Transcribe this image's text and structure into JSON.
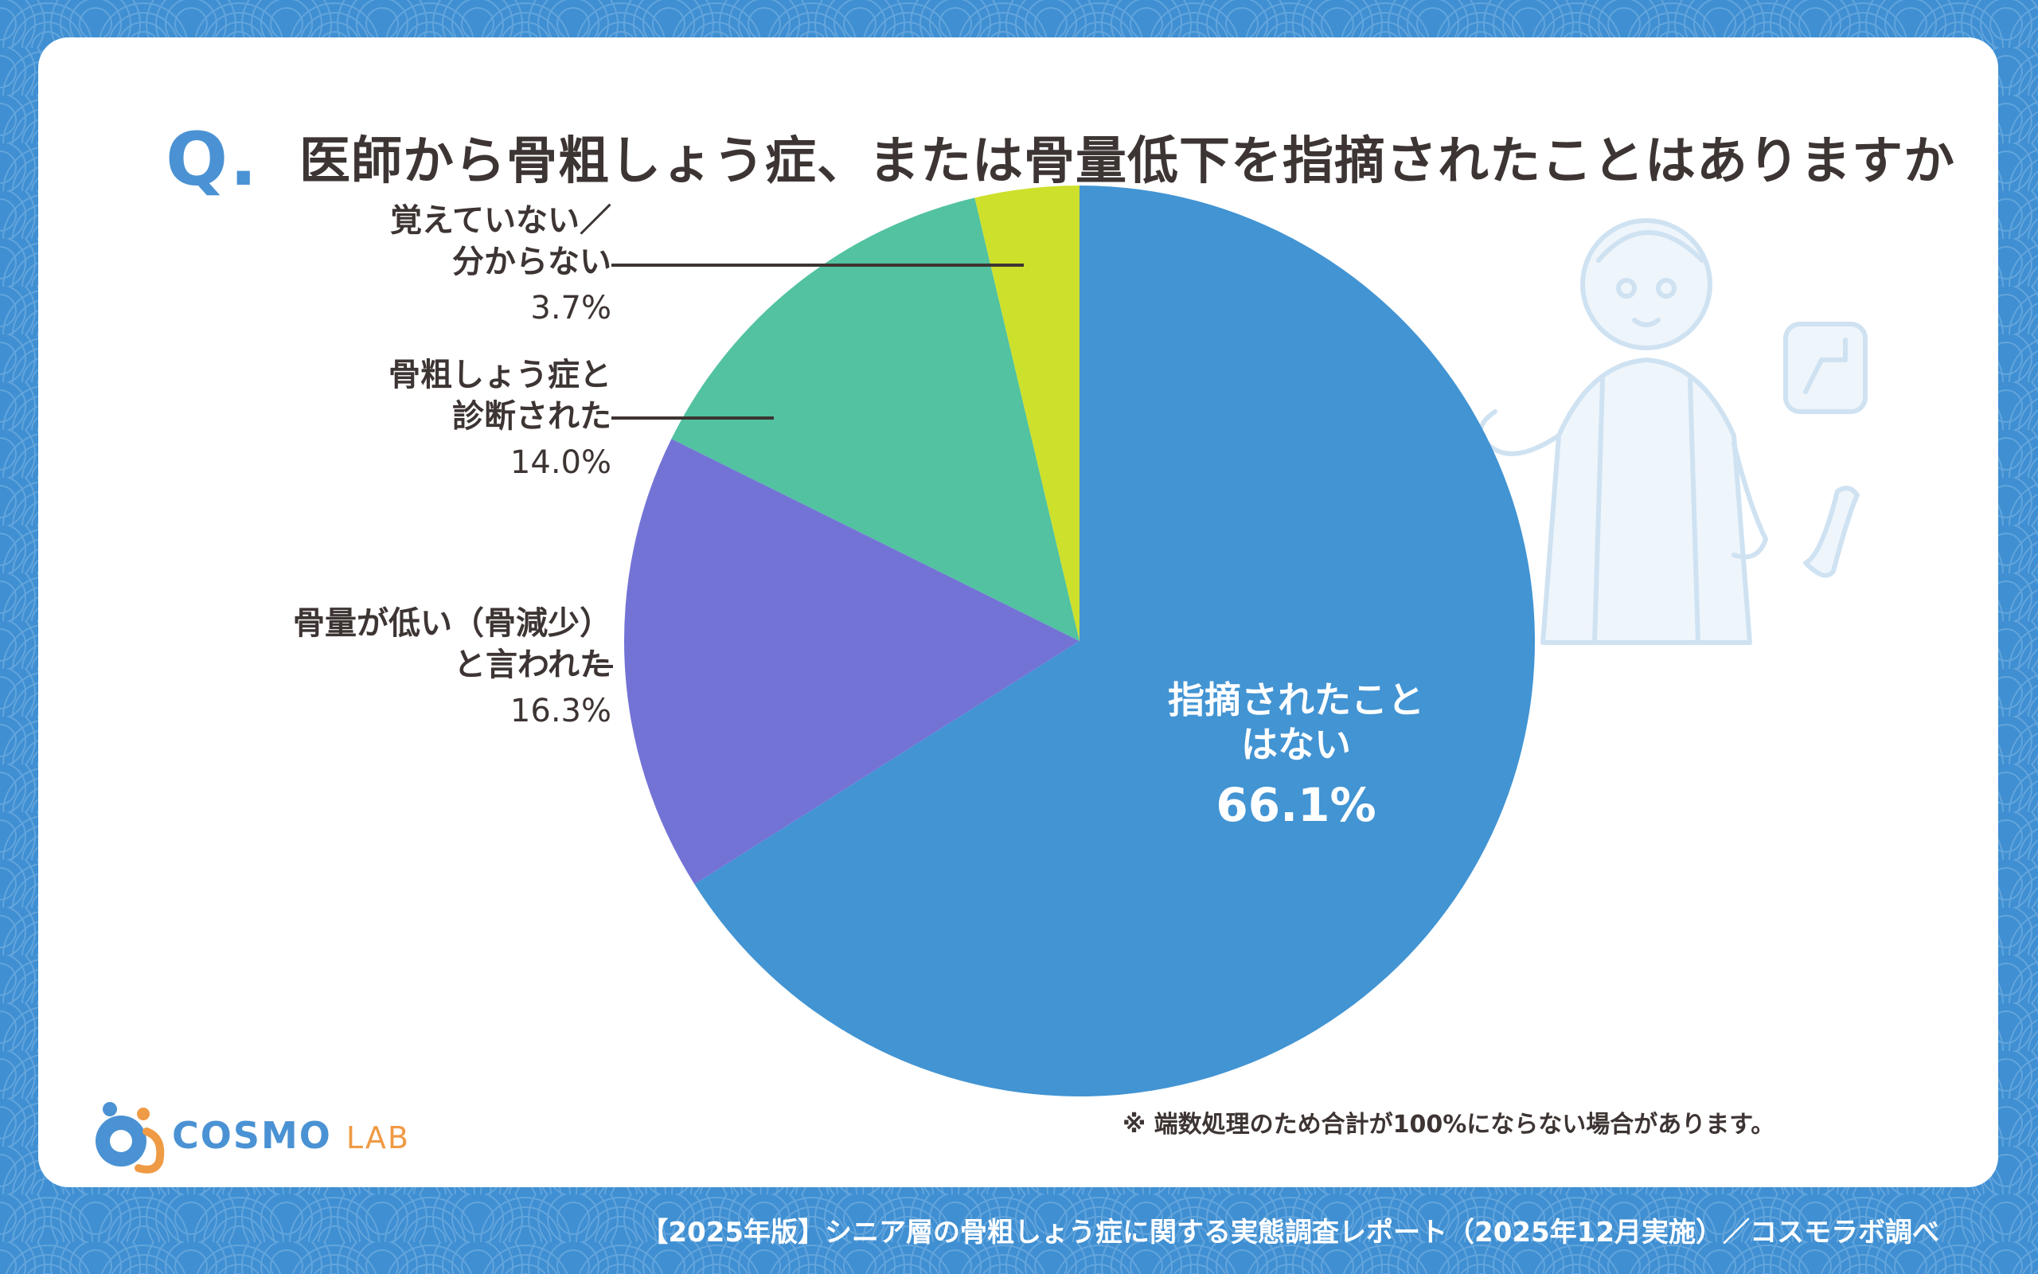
{
  "question": {
    "mark": "Q.",
    "text": "医師から骨粗しょう症、または骨量低下を指摘されたことはありますか"
  },
  "chart_data": {
    "type": "pie",
    "start_angle_deg": 0,
    "direction": "clockwise",
    "slices": [
      {
        "label": "指摘されたことはない",
        "label_lines": [
          "指摘されたこと",
          "はない"
        ],
        "value": 66.1,
        "pct_text": "66.1%",
        "color": "#4294d3"
      },
      {
        "label": "骨量が低い（骨減少）と言われた",
        "label_lines": [
          "骨量が低い（骨減少）",
          "と言われた"
        ],
        "value": 16.3,
        "pct_text": "16.3%",
        "color": "#7373d6"
      },
      {
        "label": "骨粗しょう症と診断された",
        "label_lines": [
          "骨粗しょう症と",
          "診断された"
        ],
        "value": 14.0,
        "pct_text": "14.0%",
        "color": "#52c2a1"
      },
      {
        "label": "覚えていない／分からない",
        "label_lines": [
          "覚えていない／",
          "分からない"
        ],
        "value": 3.7,
        "pct_text": "3.7%",
        "color": "#cde02c"
      }
    ]
  },
  "note": "※ 端数処理のため合計が100%にならない場合があります。",
  "logo": {
    "brand": "COSMO",
    "sub": "LAB"
  },
  "footer": "【2025年版】シニア層の骨粗しょう症に関する実態調査レポート（2025年12月実施）／コスモラボ調べ",
  "colors": {
    "background": "#3f8fd2",
    "card": "#ffffff",
    "text": "#3d3533",
    "accent": "#4a92d3"
  },
  "icons": [
    "senior-illustration-icon",
    "cosmo-lab-logo-icon",
    "wave-pattern-icon"
  ]
}
